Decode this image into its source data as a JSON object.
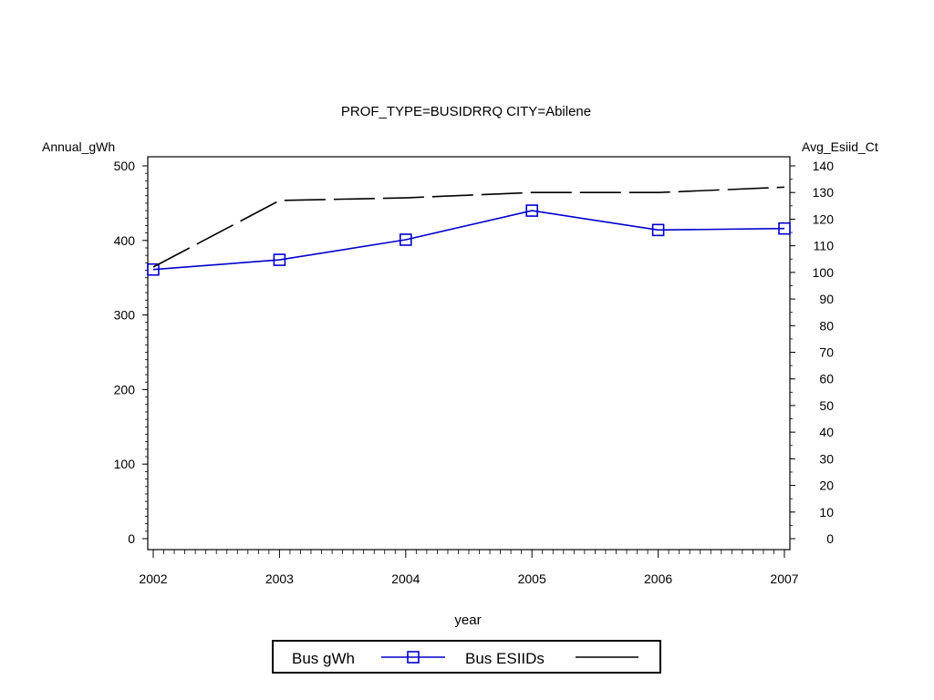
{
  "chart_data": {
    "type": "line",
    "title": "PROF_TYPE=BUSIDRRQ CITY=Abilene",
    "xlabel": "year",
    "ylabel_left": "Annual_gWh",
    "ylabel_right": "Avg_Esiid_Ct",
    "x": [
      2002,
      2003,
      2004,
      2005,
      2006,
      2007
    ],
    "x_ticks": [
      "2002",
      "2003",
      "2004",
      "2005",
      "2006",
      "2007"
    ],
    "ylim_left": [
      0,
      500
    ],
    "yticks_left": [
      "0",
      "100",
      "200",
      "300",
      "400",
      "500"
    ],
    "ylim_right": [
      0,
      140
    ],
    "yticks_right": [
      "0",
      "10",
      "20",
      "30",
      "40",
      "50",
      "60",
      "70",
      "80",
      "90",
      "100",
      "110",
      "120",
      "130",
      "140"
    ],
    "grid": false,
    "legend_position": "bottom",
    "series": [
      {
        "name": "Bus gWh",
        "axis": "left",
        "color": "#0000cc",
        "style": "solid",
        "marker": "square",
        "values": [
          361,
          374,
          401,
          440,
          414,
          416
        ]
      },
      {
        "name": "Bus ESIIDs",
        "axis": "right",
        "color": "#000000",
        "style": "dashed",
        "marker": "none",
        "values": [
          102,
          127,
          128,
          130,
          130,
          132
        ]
      }
    ]
  }
}
